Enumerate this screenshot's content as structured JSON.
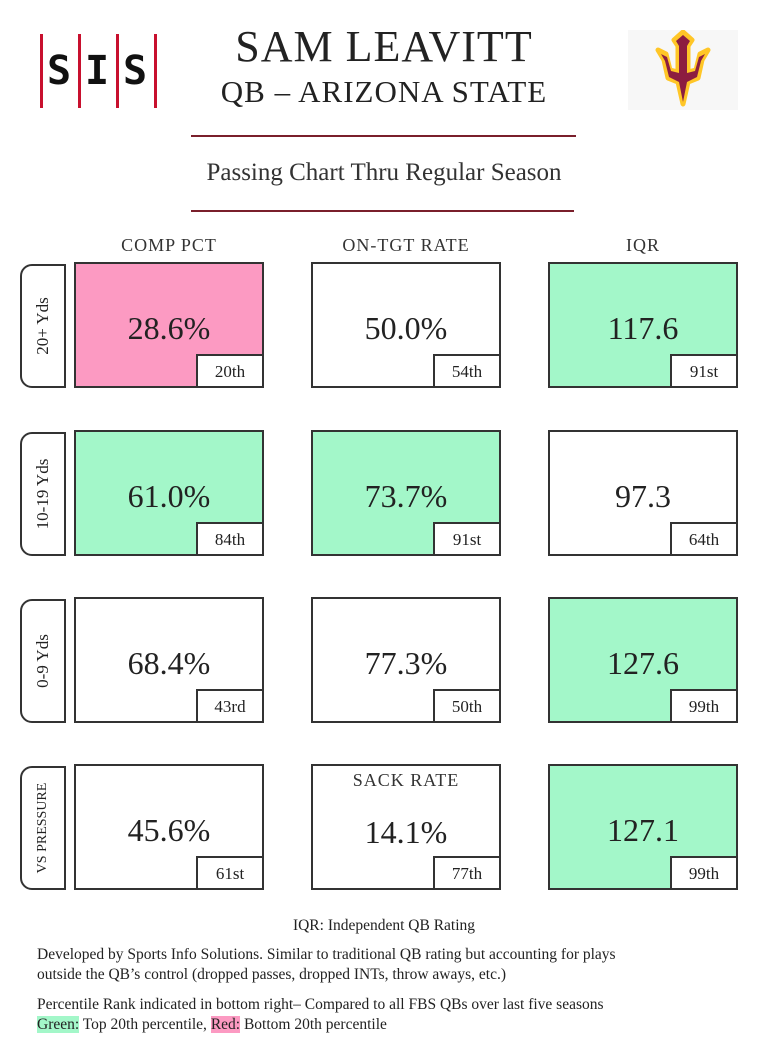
{
  "header": {
    "logo_letters": [
      "S",
      "I",
      "S"
    ],
    "title": "SAM LEAVITT",
    "subtitle": "QB – ARIZONA STATE",
    "chart_title": "Passing Chart Thru Regular Season",
    "colors": {
      "rule": "#7a1f2b",
      "sis_red": "#c8102e",
      "asu_maroon": "#8c1d40",
      "asu_gold": "#ffc627"
    }
  },
  "columns": [
    "COMP PCT",
    "ON-TGT RATE",
    "IQR"
  ],
  "rows": [
    {
      "label": "20+ Yds",
      "cells": [
        {
          "value": "28.6%",
          "rank": "20th",
          "tier": "red"
        },
        {
          "value": "50.0%",
          "rank": "54th",
          "tier": "none"
        },
        {
          "value": "117.6",
          "rank": "91st",
          "tier": "green"
        }
      ]
    },
    {
      "label": "10-19 Yds",
      "cells": [
        {
          "value": "61.0%",
          "rank": "84th",
          "tier": "green"
        },
        {
          "value": "73.7%",
          "rank": "91st",
          "tier": "green"
        },
        {
          "value": "97.3",
          "rank": "64th",
          "tier": "none"
        }
      ]
    },
    {
      "label": "0-9 Yds",
      "cells": [
        {
          "value": "68.4%",
          "rank": "43rd",
          "tier": "none"
        },
        {
          "value": "77.3%",
          "rank": "50th",
          "tier": "none"
        },
        {
          "value": "127.6",
          "rank": "99th",
          "tier": "green"
        }
      ]
    },
    {
      "label": "VS PRESSURE",
      "cells": [
        {
          "value": "45.6%",
          "rank": "61st",
          "tier": "none"
        },
        {
          "value": "14.1%",
          "rank": "77th",
          "tier": "none",
          "label": "SACK RATE"
        },
        {
          "value": "127.1",
          "rank": "99th",
          "tier": "green"
        }
      ]
    }
  ],
  "notes": {
    "iqr_def": "IQR: Independent QB Rating",
    "developed_1": "Developed by Sports Info Solutions. Similar to traditional QB rating but accounting for plays",
    "developed_2": "outside the QB’s control (dropped passes, dropped INTs, throw aways, etc.)",
    "percentile": "Percentile Rank indicated in bottom right– Compared to all FBS QBs over last five seasons",
    "green_label": "Green:",
    "green_text": " Top 20th percentile, ",
    "red_label": "Red:",
    "red_text": " Bottom 20th percentile"
  },
  "tier_colors": {
    "green": "#a3f7c9",
    "red": "#fc9ac2",
    "none": "#ffffff"
  }
}
